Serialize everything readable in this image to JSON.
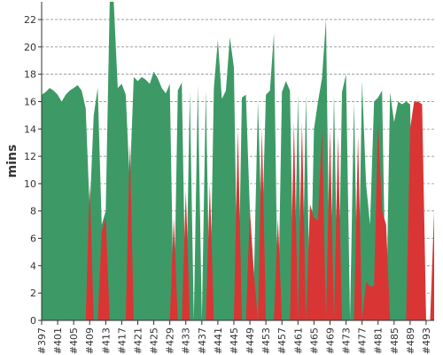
{
  "chart_data": {
    "type": "area",
    "ylabel": "mins",
    "xlabel": "",
    "ylim": [
      0,
      23.3
    ],
    "yticks": [
      0,
      2,
      4,
      6,
      8,
      10,
      12,
      14,
      16,
      18,
      20,
      22
    ],
    "grid": true,
    "x_start": 397,
    "x_end": 495,
    "xtick_labels": [
      "#397",
      "#401",
      "#405",
      "#409",
      "#413",
      "#417",
      "#421",
      "#425",
      "#429",
      "#433",
      "#437",
      "#441",
      "#445",
      "#449",
      "#453",
      "#457",
      "#461",
      "#465",
      "#469",
      "#473",
      "#477",
      "#481",
      "#485",
      "#489",
      "#493"
    ],
    "series": [
      {
        "color_key": "green",
        "points": [
          [
            397,
            16.5
          ],
          [
            398,
            16.7
          ],
          [
            399,
            17.0
          ],
          [
            400,
            16.8
          ],
          [
            401,
            16.5
          ],
          [
            402,
            16.0
          ],
          [
            403,
            16.5
          ],
          [
            404,
            16.8
          ],
          [
            405,
            17.0
          ],
          [
            406,
            17.2
          ],
          [
            407,
            16.8
          ],
          [
            408,
            15.5
          ],
          [
            409,
            8.0
          ],
          [
            410,
            15.0
          ],
          [
            411,
            17.0
          ],
          [
            412,
            7.0
          ],
          [
            413,
            8.0
          ],
          [
            414,
            23.3
          ],
          [
            415,
            23.3
          ],
          [
            416,
            17.0
          ],
          [
            417,
            17.3
          ],
          [
            418,
            16.5
          ],
          [
            419,
            10.0
          ],
          [
            420,
            17.8
          ],
          [
            421,
            17.5
          ],
          [
            422,
            17.8
          ],
          [
            423,
            17.6
          ],
          [
            424,
            17.3
          ],
          [
            425,
            18.2
          ],
          [
            426,
            17.7
          ],
          [
            427,
            17.0
          ],
          [
            428,
            16.6
          ],
          [
            429,
            17.3
          ],
          [
            430,
            0.0
          ],
          [
            431,
            16.8
          ],
          [
            432,
            17.4
          ],
          [
            433,
            0.0
          ],
          [
            434,
            16.7
          ],
          [
            435,
            0.0
          ],
          [
            436,
            17.2
          ],
          [
            437,
            0.0
          ],
          [
            438,
            16.8
          ],
          [
            439,
            0.0
          ],
          [
            440,
            17.0
          ],
          [
            441,
            20.5
          ],
          [
            442,
            16.2
          ],
          [
            443,
            16.8
          ],
          [
            444,
            20.7
          ],
          [
            445,
            18.5
          ],
          [
            446,
            0.0
          ],
          [
            447,
            16.3
          ],
          [
            448,
            16.5
          ],
          [
            449,
            8.0
          ],
          [
            450,
            3.0
          ],
          [
            451,
            16.0
          ],
          [
            452,
            6.0
          ],
          [
            453,
            16.5
          ],
          [
            454,
            16.8
          ],
          [
            455,
            21.0
          ],
          [
            456,
            0.0
          ],
          [
            457,
            16.7
          ],
          [
            458,
            17.5
          ],
          [
            459,
            16.8
          ],
          [
            460,
            0.0
          ],
          [
            461,
            16.5
          ],
          [
            462,
            0.0
          ],
          [
            463,
            16.5
          ],
          [
            464,
            0.0
          ],
          [
            465,
            14.0
          ],
          [
            466,
            16.0
          ],
          [
            467,
            17.7
          ],
          [
            468,
            22.0
          ],
          [
            469,
            0.0
          ],
          [
            470,
            16.5
          ],
          [
            471,
            0.0
          ],
          [
            472,
            16.7
          ],
          [
            473,
            18.0
          ],
          [
            474,
            0.0
          ],
          [
            475,
            16.0
          ],
          [
            476,
            0.0
          ],
          [
            477,
            17.5
          ],
          [
            478,
            10.0
          ],
          [
            479,
            7.0
          ],
          [
            480,
            16.0
          ],
          [
            481,
            16.3
          ],
          [
            482,
            16.8
          ],
          [
            483,
            0.0
          ],
          [
            484,
            16.7
          ],
          [
            485,
            14.5
          ],
          [
            486,
            16.0
          ],
          [
            487,
            15.8
          ],
          [
            488,
            16.0
          ],
          [
            489,
            15.8
          ],
          [
            490,
            0.0
          ],
          [
            491,
            16.7
          ]
        ]
      },
      {
        "color_key": "red",
        "points": [
          [
            397,
            0
          ],
          [
            408,
            0
          ],
          [
            409,
            10.0
          ],
          [
            410,
            0
          ],
          [
            411,
            0
          ],
          [
            412,
            6.5
          ],
          [
            413,
            7.5
          ],
          [
            414,
            0
          ],
          [
            418,
            0
          ],
          [
            419,
            13.0
          ],
          [
            420,
            0
          ],
          [
            429,
            0
          ],
          [
            430,
            7.5
          ],
          [
            431,
            0
          ],
          [
            432,
            0
          ],
          [
            433,
            9.5
          ],
          [
            434,
            0
          ],
          [
            438,
            0
          ],
          [
            439,
            10.0
          ],
          [
            440,
            0
          ],
          [
            445,
            0
          ],
          [
            446,
            14.0
          ],
          [
            447,
            0
          ],
          [
            448,
            0
          ],
          [
            449,
            8.0
          ],
          [
            450,
            3.5
          ],
          [
            451,
            0
          ],
          [
            452,
            14.0
          ],
          [
            453,
            0
          ],
          [
            455,
            0
          ],
          [
            456,
            7.5
          ],
          [
            457,
            0
          ],
          [
            459,
            0
          ],
          [
            460,
            14.5
          ],
          [
            461,
            0
          ],
          [
            462,
            14.5
          ],
          [
            463,
            0
          ],
          [
            464,
            8.5
          ],
          [
            465,
            7.5
          ],
          [
            466,
            7.3
          ],
          [
            467,
            14.0
          ],
          [
            468,
            0
          ],
          [
            469,
            14.0
          ],
          [
            470,
            0
          ],
          [
            471,
            13.5
          ],
          [
            472,
            0
          ],
          [
            475,
            0
          ],
          [
            476,
            13.5
          ],
          [
            477,
            0
          ],
          [
            478,
            2.8
          ],
          [
            479,
            2.5
          ],
          [
            480,
            2.5
          ],
          [
            481,
            14.5
          ],
          [
            482,
            8.0
          ],
          [
            483,
            7.0
          ],
          [
            484,
            0
          ],
          [
            488,
            0
          ],
          [
            489,
            14.0
          ],
          [
            490,
            16.0
          ],
          [
            491,
            16.0
          ],
          [
            492,
            15.8
          ],
          [
            493,
            0
          ],
          [
            494,
            0
          ],
          [
            495,
            8.0
          ]
        ]
      }
    ]
  },
  "colors": {
    "green": "#3d9a66",
    "red": "#d93535",
    "grid": "#808080",
    "axis": "#333333",
    "background": "#ffffff"
  }
}
